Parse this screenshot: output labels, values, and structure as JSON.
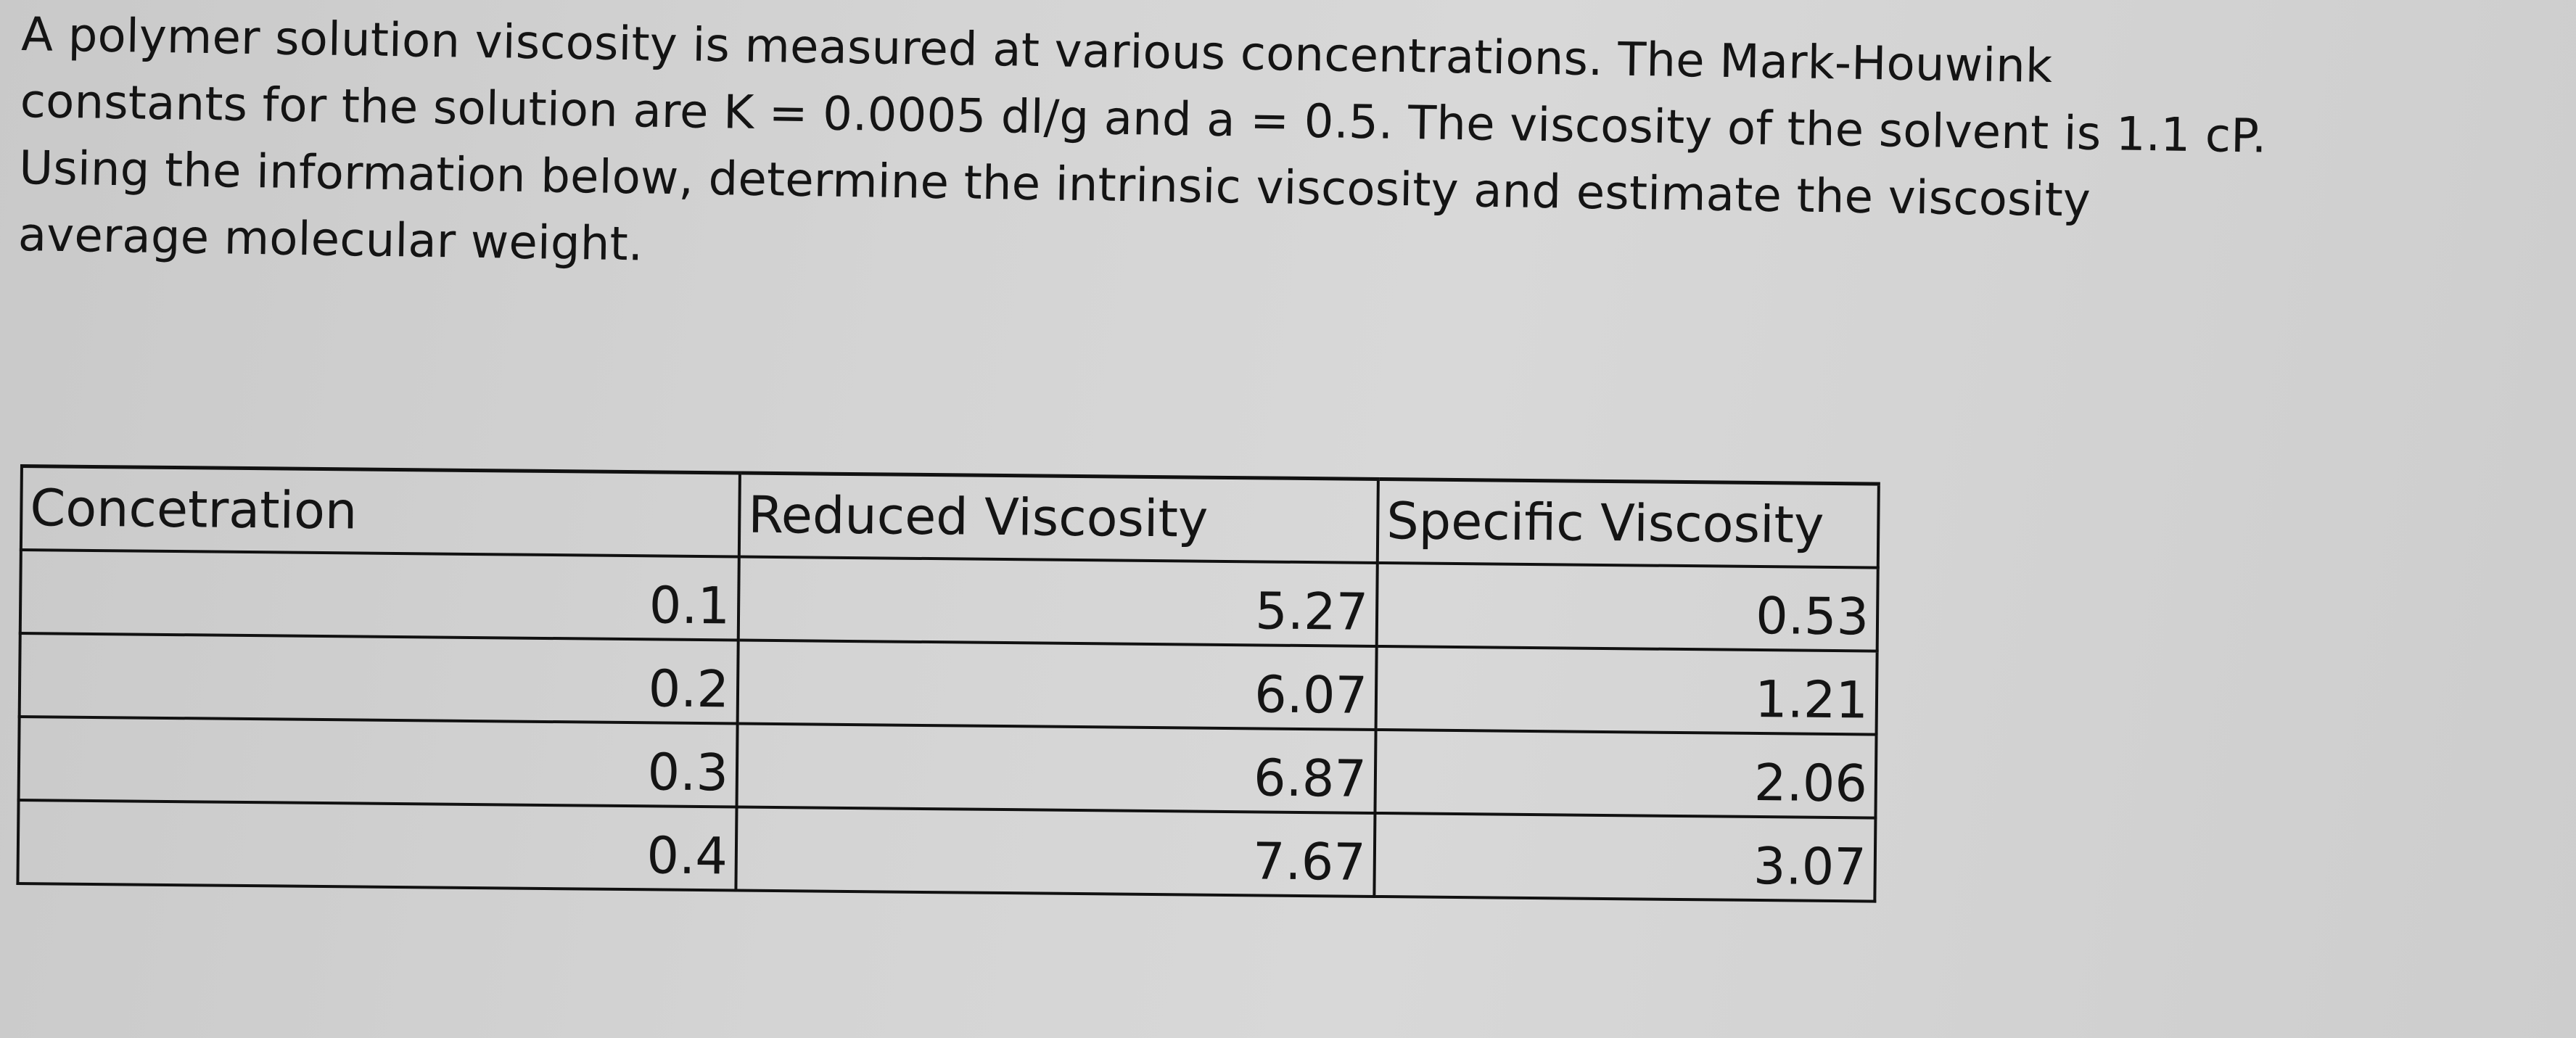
{
  "problem": {
    "lines": [
      "A polymer solution viscosity is measured at various concentrations. The Mark-Houwink",
      "constants for the solution are K = 0.0005 dl/g and a = 0.5. The viscosity of the solvent is 1.1 cP.",
      "Using the information below, determine the intrinsic viscosity and estimate the viscosity",
      "average molecular weight."
    ]
  },
  "table": {
    "headers": [
      "Concetration",
      "Reduced Viscosity",
      "Specific Viscosity"
    ],
    "rows": [
      [
        "0.1",
        "5.27",
        "0.53"
      ],
      [
        "0.2",
        "6.07",
        "1.21"
      ],
      [
        "0.3",
        "6.87",
        "2.06"
      ],
      [
        "0.4",
        "7.67",
        "3.07"
      ]
    ]
  }
}
